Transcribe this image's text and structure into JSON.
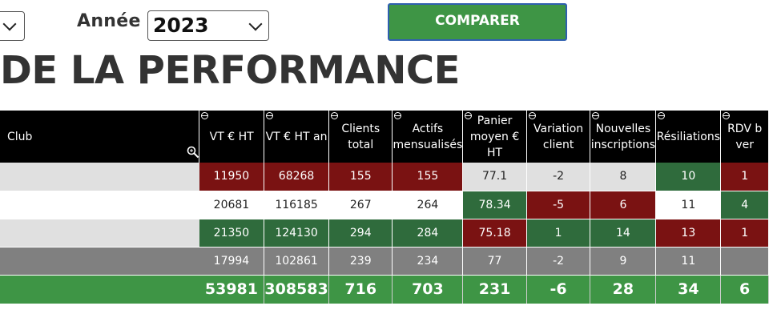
{
  "filters": {
    "year_label": "Année",
    "year_value": "2023",
    "compare_label": "COMPARER"
  },
  "title": "DE LA PERFORMANCE",
  "table": {
    "headers": [
      "Club",
      "VT € HT",
      "VT € HT an",
      "Clients total",
      "Actifs mensualisés",
      "Panier moyen € HT",
      "Variation client",
      "Nouvelles inscriptions",
      "Résiliations",
      "RDV b ver"
    ],
    "rows": [
      [
        "",
        "11950",
        "68268",
        "155",
        "155",
        "77.1",
        "-2",
        "8",
        "10",
        "1"
      ],
      [
        "",
        "20681",
        "116185",
        "267",
        "264",
        "78.34",
        "-5",
        "6",
        "11",
        "4"
      ],
      [
        "",
        "21350",
        "124130",
        "294",
        "284",
        "75.18",
        "1",
        "14",
        "13",
        "1"
      ],
      [
        "",
        "17994",
        "102861",
        "239",
        "234",
        "77",
        "-2",
        "9",
        "11",
        ""
      ]
    ],
    "totals": [
      "",
      "53981",
      "308583",
      "716",
      "703",
      "231",
      "-6",
      "28",
      "34",
      "6"
    ],
    "colors": {
      "red": "#7a1212",
      "green": "#2f6b3c",
      "total_green": "#3e9545",
      "grey": "#808080",
      "light": "#e0e0e0"
    }
  }
}
